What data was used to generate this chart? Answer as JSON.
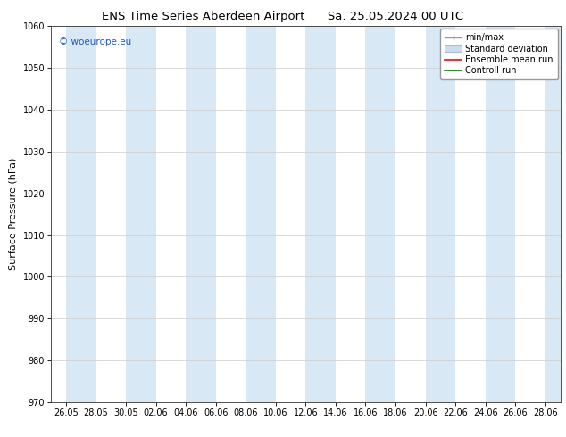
{
  "title_left": "ENS Time Series Aberdeen Airport",
  "title_right": "Sa. 25.05.2024 00 UTC",
  "ylabel": "Surface Pressure (hPa)",
  "ylim": [
    970,
    1060
  ],
  "yticks": [
    970,
    980,
    990,
    1000,
    1010,
    1020,
    1030,
    1040,
    1050,
    1060
  ],
  "xlabel_ticks": [
    "26.05",
    "28.05",
    "30.05",
    "02.06",
    "04.06",
    "06.06",
    "08.06",
    "10.06",
    "12.06",
    "14.06",
    "16.06",
    "18.06",
    "20.06",
    "22.06",
    "24.06",
    "26.06",
    "28.06"
  ],
  "watermark": "© woeurope.eu",
  "bg_color": "#ffffff",
  "plot_bg_color": "#ffffff",
  "shaded_color": "#d8e8f5",
  "shaded_alpha": 1.0,
  "legend_labels": [
    "min/max",
    "Standard deviation",
    "Ensemble mean run",
    "Controll run"
  ],
  "legend_colors_line": [
    "#999999",
    "#bbccdd",
    "#ff0000",
    "#008000"
  ],
  "title_fontsize": 9.5,
  "tick_fontsize": 7,
  "ylabel_fontsize": 8,
  "legend_fontsize": 7,
  "watermark_fontsize": 7.5,
  "watermark_color": "#2255cc"
}
